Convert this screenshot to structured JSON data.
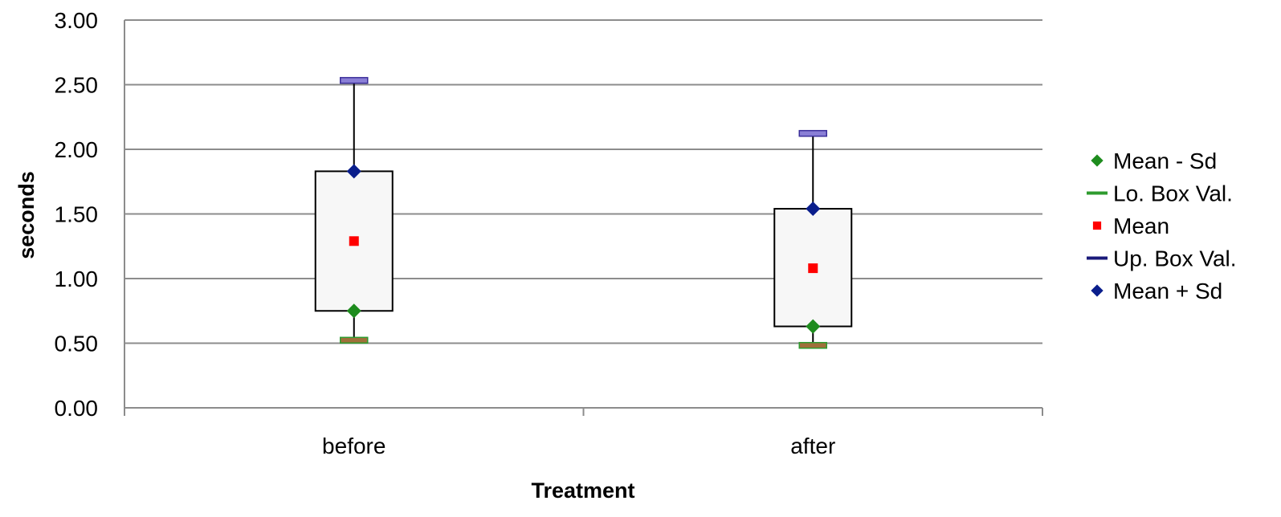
{
  "chart_data": {
    "type": "box",
    "xlabel": "Treatment",
    "ylabel": "seconds",
    "ylim": [
      0,
      3
    ],
    "ytick_step": 0.5,
    "ytick_labels": [
      "0.00",
      "0.50",
      "1.00",
      "1.50",
      "2.00",
      "2.50",
      "3.00"
    ],
    "grid": true,
    "legend_position": "right",
    "categories": [
      "before",
      "after"
    ],
    "series": [
      {
        "name": "Mean - Sd",
        "marker": "diamond",
        "color": "#1E8C1E",
        "values": [
          0.75,
          0.63
        ]
      },
      {
        "name": "Lo. Box Val.",
        "marker": "dash",
        "color": "#2E9B2E",
        "values": [
          0.52,
          0.48
        ]
      },
      {
        "name": "Mean",
        "marker": "square",
        "color": "#FF0000",
        "values": [
          1.29,
          1.08
        ]
      },
      {
        "name": "Up. Box Val.",
        "marker": "dash",
        "color": "#1A1A7A",
        "values": [
          2.53,
          2.12
        ]
      },
      {
        "name": "Mean + Sd",
        "marker": "diamond",
        "color": "#0A1E8C",
        "values": [
          1.83,
          1.54
        ]
      }
    ],
    "box_fill": "#F7F7F7"
  }
}
